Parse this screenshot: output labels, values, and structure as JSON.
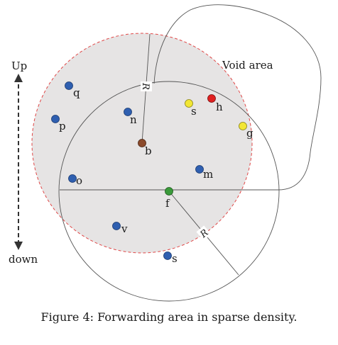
{
  "labels": {
    "up": "Up",
    "down": "down",
    "void_area": "Void area",
    "radius": "R"
  },
  "caption": "Figure 4: Forwarding area in sparse density.",
  "colors": {
    "blue": "#2f5fb0",
    "brown": "#8b4a2b",
    "green": "#3a9a3a",
    "yellow": "#f2e634",
    "red": "#e02020",
    "dashed_circle": "#e04848",
    "fill_gray": "#e6e4e4"
  },
  "nodes": [
    {
      "id": "q",
      "color": "blue"
    },
    {
      "id": "p",
      "color": "blue"
    },
    {
      "id": "n",
      "color": "blue"
    },
    {
      "id": "b",
      "color": "brown"
    },
    {
      "id": "s",
      "color": "yellow"
    },
    {
      "id": "h",
      "color": "red"
    },
    {
      "id": "g",
      "color": "yellow"
    },
    {
      "id": "m",
      "color": "blue"
    },
    {
      "id": "o",
      "color": "blue"
    },
    {
      "id": "f",
      "color": "green"
    },
    {
      "id": "v",
      "color": "blue"
    },
    {
      "id": "s",
      "color": "blue"
    }
  ]
}
